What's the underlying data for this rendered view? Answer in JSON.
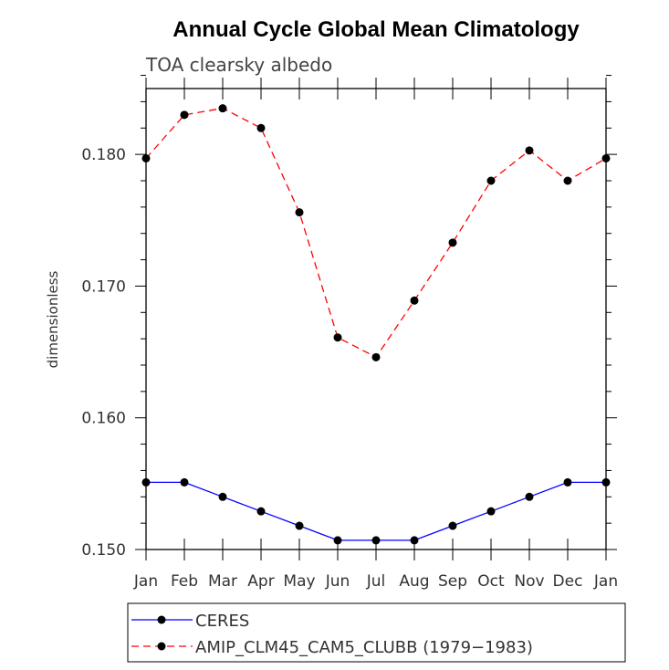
{
  "chart_data": {
    "type": "line",
    "title": "Annual Cycle Global Mean Climatology",
    "subtitle": "TOA clearsky albedo",
    "xlabel": "",
    "ylabel": "dimensionless",
    "categories": [
      "Jan",
      "Feb",
      "Mar",
      "Apr",
      "May",
      "Jun",
      "Jul",
      "Aug",
      "Sep",
      "Oct",
      "Nov",
      "Dec",
      "Jan"
    ],
    "ylim": [
      0.15,
      0.185
    ],
    "yticks": [
      0.15,
      0.16,
      0.17,
      0.18
    ],
    "ytick_labels": [
      "0.150",
      "0.160",
      "0.170",
      "0.180"
    ],
    "series": [
      {
        "name": "CERES",
        "color": "#0000ff",
        "line_style": "solid",
        "marker": "filled-circle",
        "values": [
          0.1551,
          0.1551,
          0.154,
          0.1529,
          0.1518,
          0.1507,
          0.1507,
          0.1507,
          0.1518,
          0.1529,
          0.154,
          0.1551,
          0.1551
        ]
      },
      {
        "name": "AMIP_CLM45_CAM5_CLUBB (1979−1983)",
        "color": "#ff0000",
        "line_style": "dashed",
        "marker": "filled-circle",
        "values": [
          0.1797,
          0.183,
          0.1835,
          0.182,
          0.1756,
          0.1661,
          0.1646,
          0.1689,
          0.1733,
          0.178,
          0.1803,
          0.178,
          0.1797
        ]
      }
    ],
    "legend_position": "bottom"
  }
}
